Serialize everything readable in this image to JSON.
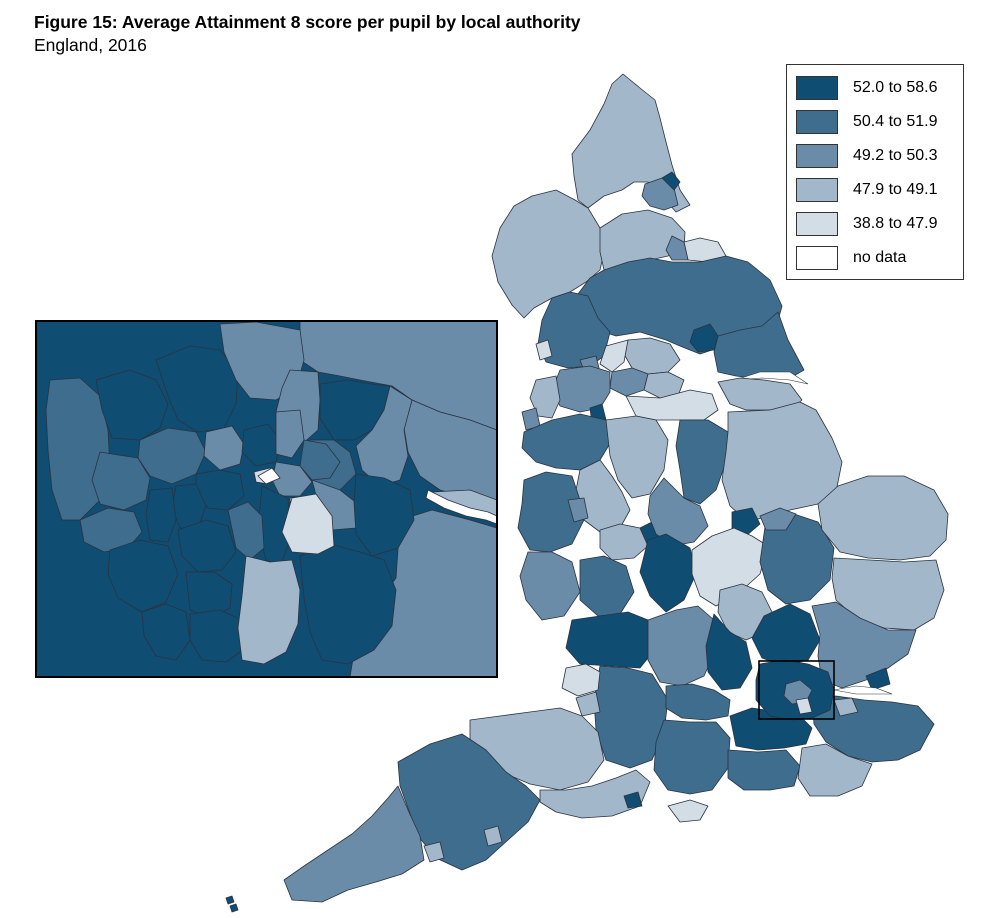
{
  "figure": {
    "title": "Figure 15: Average Attainment 8 score per pupil by local authority",
    "subtitle": "England, 2016"
  },
  "colors": {
    "band1": "#0f4d72",
    "band2": "#3e6d8d",
    "band3": "#6b8ca8",
    "band4": "#a2b7c9",
    "band5": "#d2dde6",
    "nodata": "#ffffff",
    "river": "#ffffff"
  },
  "legend": {
    "items": [
      {
        "label": "52.0 to 58.6",
        "color": "#0f4d72"
      },
      {
        "label": "50.4 to 51.9",
        "color": "#3e6d8d"
      },
      {
        "label": "49.2 to 50.3",
        "color": "#6b8ca8"
      },
      {
        "label": "47.9 to 49.1",
        "color": "#a2b7c9"
      },
      {
        "label": "38.8 to 47.9",
        "color": "#d2dde6"
      },
      {
        "label": "no data",
        "color": "#ffffff"
      }
    ]
  }
}
